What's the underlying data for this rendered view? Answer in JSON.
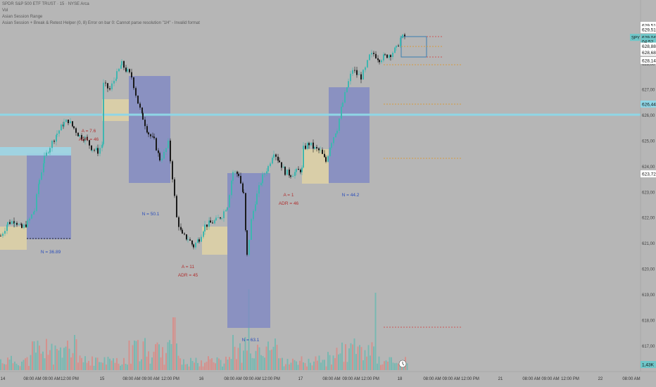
{
  "chart_data": {
    "type": "candlestick",
    "symbol": "SPY",
    "legend": [
      "SPDR S&P 500 ETF TRUST · 15 · NYSE Arca",
      "Vol",
      "Asian Session Range",
      "Asian Session + Break & Retest Helper (0, 8) Error on bar 0: Cannot parse resolution \"1H\" - Invalid format"
    ],
    "y_ticks": [
      "629,51",
      "629,00",
      "628,00",
      "627,00",
      "626,00",
      "625,00",
      "624,00",
      "623,00",
      "622,00",
      "621,00",
      "620,00",
      "619,00",
      "618,00",
      "617,00"
    ],
    "price_labels": [
      {
        "text": "629,51",
        "price": 629.51,
        "style": "white"
      },
      {
        "text": "629,51",
        "price": 629.34,
        "style": "white"
      },
      {
        "text": "629,04",
        "price": 629.04,
        "style": "teal"
      },
      {
        "text": "04:52",
        "price": 628.88,
        "style": "teal"
      },
      {
        "text": "628,88",
        "price": 628.7,
        "style": "white"
      },
      {
        "text": "628,68",
        "price": 628.46,
        "style": "white"
      },
      {
        "text": "628,14",
        "price": 628.14,
        "style": "white"
      },
      {
        "text": "626,44",
        "price": 626.44,
        "style": "blue"
      },
      {
        "text": "623,72",
        "price": 623.72,
        "style": "white"
      }
    ],
    "ticker_tag": "SPY",
    "volume_label": "1,43K",
    "x_labels": [
      {
        "t": "14",
        "x": 4
      },
      {
        "t": "08:00 AM",
        "x": 46
      },
      {
        "t": "09:00 AM",
        "x": 73
      },
      {
        "t": "12:00 PM",
        "x": 99
      },
      {
        "t": "15",
        "x": 145
      },
      {
        "t": "08:00 AM",
        "x": 187
      },
      {
        "t": "09:00 AM",
        "x": 214
      },
      {
        "t": "12:00 PM",
        "x": 242
      },
      {
        "t": "16",
        "x": 286
      },
      {
        "t": "08:00 AM",
        "x": 331
      },
      {
        "t": "09:00 AM",
        "x": 358
      },
      {
        "t": "12:00 PM",
        "x": 385
      },
      {
        "t": "17",
        "x": 427
      },
      {
        "t": "08:00 AM",
        "x": 471
      },
      {
        "t": "09:00 AM",
        "x": 499
      },
      {
        "t": "12:00 PM",
        "x": 526
      },
      {
        "t": "18",
        "x": 568
      },
      {
        "t": "08:00 AM",
        "x": 614
      },
      {
        "t": "09:00 AM",
        "x": 641
      },
      {
        "t": "12:00 PM",
        "x": 668
      },
      {
        "t": "21",
        "x": 711
      },
      {
        "t": "08:00 AM",
        "x": 755
      },
      {
        "t": "09:00 AM",
        "x": 782
      },
      {
        "t": "12:00 PM",
        "x": 810
      },
      {
        "t": "22",
        "x": 853
      },
      {
        "t": "08:00 AM",
        "x": 897
      }
    ],
    "horizontal_line": {
      "price": 626.44
    },
    "annotations": [
      {
        "text": "N = 36.89",
        "color": "#2a4dbb",
        "x": 72,
        "y": 360
      },
      {
        "text": "A = 7.6",
        "color": "#b03030",
        "x": 126,
        "y": 188
      },
      {
        "text": "ADR = 46",
        "color": "#b03030",
        "x": 126,
        "y": 200
      },
      {
        "text": "N = 50.1",
        "color": "#2a4dbb",
        "x": 214,
        "y": 306
      },
      {
        "text": "A = 11",
        "color": "#b03030",
        "x": 267,
        "y": 381
      },
      {
        "text": "ADR = 45",
        "color": "#b03030",
        "x": 267,
        "y": 393
      },
      {
        "text": "N = 63.1",
        "color": "#2a4dbb",
        "x": 356,
        "y": 485
      },
      {
        "text": "A = 1",
        "color": "#b03030",
        "x": 410,
        "y": 279
      },
      {
        "text": "ADR = 46",
        "color": "#b03030",
        "x": 410,
        "y": 291
      },
      {
        "text": "N = 44.2",
        "color": "#2a4dbb",
        "x": 498,
        "y": 279
      }
    ]
  }
}
